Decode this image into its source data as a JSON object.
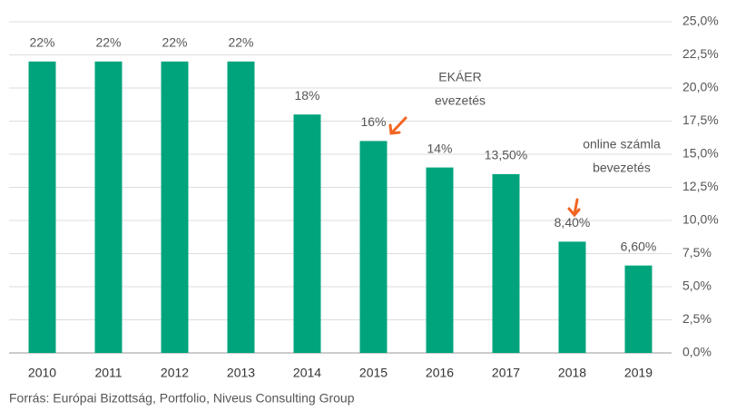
{
  "chart_data": {
    "type": "bar",
    "categories": [
      "2010",
      "2011",
      "2012",
      "2013",
      "2014",
      "2015",
      "2016",
      "2017",
      "2018",
      "2019"
    ],
    "values": [
      22,
      22,
      22,
      22,
      18,
      16,
      14,
      13.5,
      8.4,
      6.6
    ],
    "value_labels": [
      "22%",
      "22%",
      "22%",
      "22%",
      "18%",
      "16%",
      "14%",
      "13,50%",
      "8,40%",
      "6,60%"
    ],
    "color": "#00a47c",
    "ylim": [
      0,
      25
    ],
    "yticks": [
      {
        "value": 0,
        "label": "0,0%"
      },
      {
        "value": 2.5,
        "label": "2,5%"
      },
      {
        "value": 5,
        "label": "5,0%"
      },
      {
        "value": 7.5,
        "label": "7,5%"
      },
      {
        "value": 10,
        "label": "10,0%"
      },
      {
        "value": 12.5,
        "label": "12,5%"
      },
      {
        "value": 15,
        "label": "15,0%"
      },
      {
        "value": 17.5,
        "label": "17,5%"
      },
      {
        "value": 20,
        "label": "20,0%"
      },
      {
        "value": 22.5,
        "label": "22,5%"
      },
      {
        "value": 25,
        "label": "25,0%"
      }
    ],
    "grid": true,
    "annotations": [
      [
        "EKÁER",
        "evezetés"
      ],
      [
        "online számla",
        "bevezetés"
      ]
    ],
    "source": "Forrás: Európai Bizottság, Portfolio, Niveus Consulting Group"
  }
}
